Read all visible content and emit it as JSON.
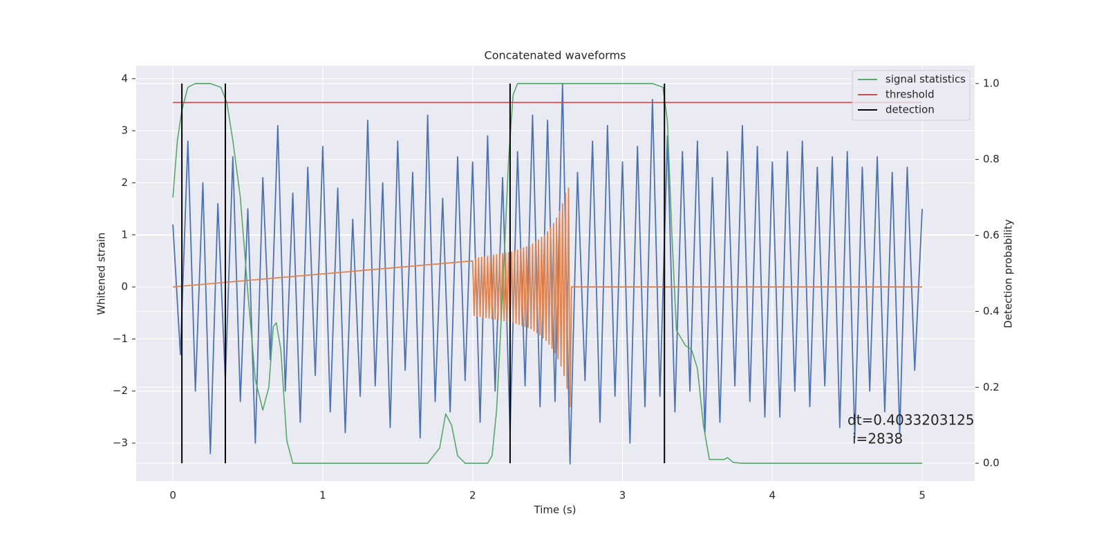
{
  "chart_data": {
    "type": "line",
    "title": "Concatenated waveforms",
    "x_label": "Time (s)",
    "y_label": "Whitened strain",
    "y2_label": "Detection probability",
    "xlim": [
      -0.245,
      5.35
    ],
    "ylim": [
      -3.73,
      4.25
    ],
    "y2lim": [
      -0.047,
      1.047
    ],
    "xticks": [
      0,
      1,
      2,
      3,
      4,
      5
    ],
    "yticks": [
      {
        "value": -3,
        "label": "−3"
      },
      {
        "value": -2,
        "label": "−2"
      },
      {
        "value": -1,
        "label": "−1"
      },
      0,
      1,
      2,
      3,
      4
    ],
    "y2ticks": [
      {
        "value": 0,
        "label": "0.0"
      },
      {
        "value": 0.2,
        "label": "0.2"
      },
      {
        "value": 0.4,
        "label": "0.4"
      },
      {
        "value": 0.6,
        "label": "0.6"
      },
      {
        "value": 0.8,
        "label": "0.8"
      },
      {
        "value": 1,
        "label": "1.0"
      }
    ],
    "grid": true,
    "legend": "upper right",
    "annotation": [
      "dt=0.4033203125",
      "i=2838"
    ],
    "series": [
      {
        "color": "#4c72b0",
        "style": "line",
        "x": [
          0,
          0.05,
          0.1,
          0.15,
          0.2,
          0.25,
          0.3,
          0.35,
          0.4,
          0.45,
          0.5,
          0.55,
          0.6,
          0.65,
          0.7,
          0.75,
          0.8,
          0.85,
          0.9,
          0.95,
          1,
          1.05,
          1.1,
          1.15,
          1.2,
          1.25,
          1.3,
          1.35,
          1.4,
          1.45,
          1.5,
          1.55,
          1.6,
          1.65,
          1.7,
          1.75,
          1.8,
          1.85,
          1.9,
          1.95,
          2,
          2.05,
          2.1,
          2.15,
          2.2,
          2.25,
          2.3,
          2.35,
          2.4,
          2.45,
          2.5,
          2.55,
          2.6,
          2.65,
          2.7,
          2.75,
          2.8,
          2.85,
          2.9,
          2.95,
          3,
          3.05,
          3.1,
          3.15,
          3.2,
          3.25,
          3.3,
          3.35,
          3.4,
          3.45,
          3.5,
          3.55,
          3.6,
          3.65,
          3.7,
          3.75,
          3.8,
          3.85,
          3.9,
          3.95,
          4,
          4.05,
          4.1,
          4.15,
          4.2,
          4.25,
          4.3,
          4.35,
          4.4,
          4.45,
          4.5,
          4.55,
          4.6,
          4.65,
          4.7,
          4.75,
          4.8,
          4.85,
          4.9,
          4.95,
          5
        ],
        "values": [
          1.2,
          -1.3,
          2.8,
          -2.0,
          2.0,
          -3.2,
          1.6,
          -1.8,
          2.5,
          -2.2,
          1.5,
          -3.0,
          2.1,
          -1.4,
          3.1,
          -2.0,
          1.8,
          -2.6,
          2.3,
          -1.7,
          2.7,
          -2.4,
          1.9,
          -2.8,
          1.3,
          -2.1,
          3.2,
          -1.9,
          2.0,
          -2.7,
          2.8,
          -1.6,
          2.2,
          -2.9,
          3.3,
          -2.2,
          1.7,
          -2.4,
          2.5,
          -1.8,
          2.4,
          -2.6,
          2.9,
          -2.0,
          2.1,
          -2.8,
          2.6,
          -1.9,
          3.3,
          -2.3,
          3.2,
          -2.2,
          3.9,
          -3.4,
          2.2,
          -1.8,
          2.8,
          -2.6,
          3.1,
          -2.1,
          2.4,
          -3.0,
          2.7,
          -2.3,
          3.6,
          -2.1,
          2.9,
          -2.4,
          2.6,
          -2.0,
          2.8,
          -2.8,
          2.1,
          -2.6,
          2.6,
          -1.9,
          3.1,
          -2.2,
          2.7,
          -2.5,
          2.4,
          -2.5,
          2.6,
          -2.0,
          2.8,
          -2.3,
          2.3,
          -1.9,
          2.5,
          -2.7,
          2.6,
          -2.9,
          2.3,
          -2.0,
          2.5,
          -2.4,
          2.2,
          -2.8,
          2.3,
          -1.6,
          1.5
        ]
      },
      {
        "color": "#dd8452",
        "style": "line",
        "x": [
          0,
          2,
          2.01,
          2.02,
          2.03,
          2.04,
          2.05,
          2.06,
          2.07,
          2.08,
          2.09,
          2.1,
          2.11,
          2.12,
          2.13,
          2.14,
          2.15,
          2.16,
          2.17,
          2.18,
          2.19,
          2.2,
          2.21,
          2.22,
          2.23,
          2.24,
          2.25,
          2.26,
          2.27,
          2.28,
          2.29,
          2.3,
          2.31,
          2.32,
          2.33,
          2.34,
          2.35,
          2.36,
          2.37,
          2.38,
          2.39,
          2.4,
          2.41,
          2.42,
          2.43,
          2.44,
          2.45,
          2.46,
          2.47,
          2.48,
          2.49,
          2.5,
          2.51,
          2.52,
          2.53,
          2.54,
          2.55,
          2.56,
          2.57,
          2.58,
          2.59,
          2.6,
          2.61,
          2.62,
          2.63,
          2.64,
          2.65,
          2.66,
          5
        ],
        "values": [
          0,
          0.5,
          -0.55,
          0.55,
          -0.56,
          0.56,
          -0.57,
          0.57,
          -0.58,
          0.58,
          -0.59,
          0.59,
          -0.6,
          0.6,
          -0.61,
          0.61,
          -0.62,
          0.62,
          -0.63,
          0.63,
          -0.64,
          0.64,
          -0.65,
          0.65,
          -0.66,
          0.66,
          -0.67,
          0.67,
          -0.68,
          0.69,
          -0.7,
          0.71,
          -0.72,
          0.73,
          -0.74,
          0.75,
          -0.76,
          0.77,
          -0.78,
          0.79,
          -0.8,
          0.82,
          -0.84,
          0.86,
          -0.88,
          0.9,
          -0.92,
          0.95,
          -0.98,
          1.0,
          -1.03,
          1.06,
          -1.1,
          1.14,
          -1.18,
          1.22,
          -1.27,
          1.32,
          -1.38,
          1.45,
          -1.52,
          1.6,
          -1.7,
          1.8,
          -1.95,
          1.9,
          -2.3,
          0,
          0
        ]
      },
      {
        "name": "signal statistics",
        "color": "#55a868",
        "style": "line",
        "axis": "y2",
        "x": [
          0,
          0.03,
          0.06,
          0.1,
          0.15,
          0.25,
          0.32,
          0.36,
          0.4,
          0.45,
          0.5,
          0.55,
          0.6,
          0.64,
          0.67,
          0.69,
          0.72,
          0.76,
          0.8,
          1.0,
          1.4,
          1.7,
          1.78,
          1.82,
          1.86,
          1.9,
          1.95,
          2.1,
          2.13,
          2.16,
          2.2,
          2.24,
          2.27,
          2.3,
          3.2,
          3.27,
          3.3,
          3.33,
          3.36,
          3.42,
          3.46,
          3.5,
          3.54,
          3.58,
          3.62,
          3.68,
          3.7,
          3.74,
          3.8,
          5.0
        ],
        "values": [
          0.7,
          0.85,
          0.93,
          0.99,
          1.0,
          1.0,
          0.99,
          0.95,
          0.85,
          0.7,
          0.45,
          0.22,
          0.14,
          0.2,
          0.36,
          0.37,
          0.3,
          0.06,
          0.0,
          0.0,
          0.0,
          0.0,
          0.04,
          0.13,
          0.1,
          0.02,
          0.0,
          0.0,
          0.02,
          0.14,
          0.45,
          0.8,
          0.97,
          1.0,
          1.0,
          0.99,
          0.9,
          0.6,
          0.35,
          0.31,
          0.3,
          0.25,
          0.1,
          0.01,
          0.01,
          0.01,
          0.015,
          0.002,
          0.0,
          0.0
        ]
      },
      {
        "name": "threshold",
        "color": "#c44e52",
        "style": "line",
        "axis": "y2",
        "x": [
          0,
          5
        ],
        "values": [
          0.95,
          0.95
        ]
      },
      {
        "name": "detection",
        "color": "#000000",
        "style": "vlines",
        "axis": "y2",
        "x": [
          0.06,
          0.35,
          2.25,
          3.28
        ]
      }
    ]
  }
}
